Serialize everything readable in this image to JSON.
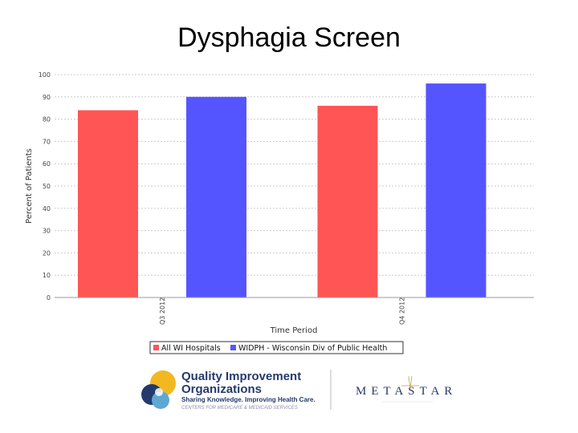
{
  "slide": {
    "title": "Dysphagia Screen"
  },
  "chart_data": {
    "type": "bar",
    "title": "",
    "xlabel": "Time Period",
    "ylabel": "Percent of Patients",
    "ylim": [
      0,
      100
    ],
    "yticks": [
      0,
      10,
      20,
      30,
      40,
      50,
      60,
      70,
      80,
      90,
      100
    ],
    "grid": true,
    "legend_position": "bottom",
    "categories": [
      "Q3 2012",
      "Q4 2012"
    ],
    "series": [
      {
        "name": "All WI Hospitals",
        "color": "#ff5555",
        "values": [
          84,
          86
        ]
      },
      {
        "name": "WIDPH - Wisconsin Div of Public Health",
        "color": "#5555ff",
        "values": [
          90,
          96
        ]
      }
    ]
  },
  "logos": {
    "qio": {
      "line1": "Quality Improvement",
      "line2": "Organizations",
      "tagline": "Sharing Knowledge. Improving Health Care.",
      "sub": "CENTERS FOR MEDICARE & MEDICAID SERVICES"
    },
    "metastar": {
      "name": "METASTAR"
    }
  }
}
